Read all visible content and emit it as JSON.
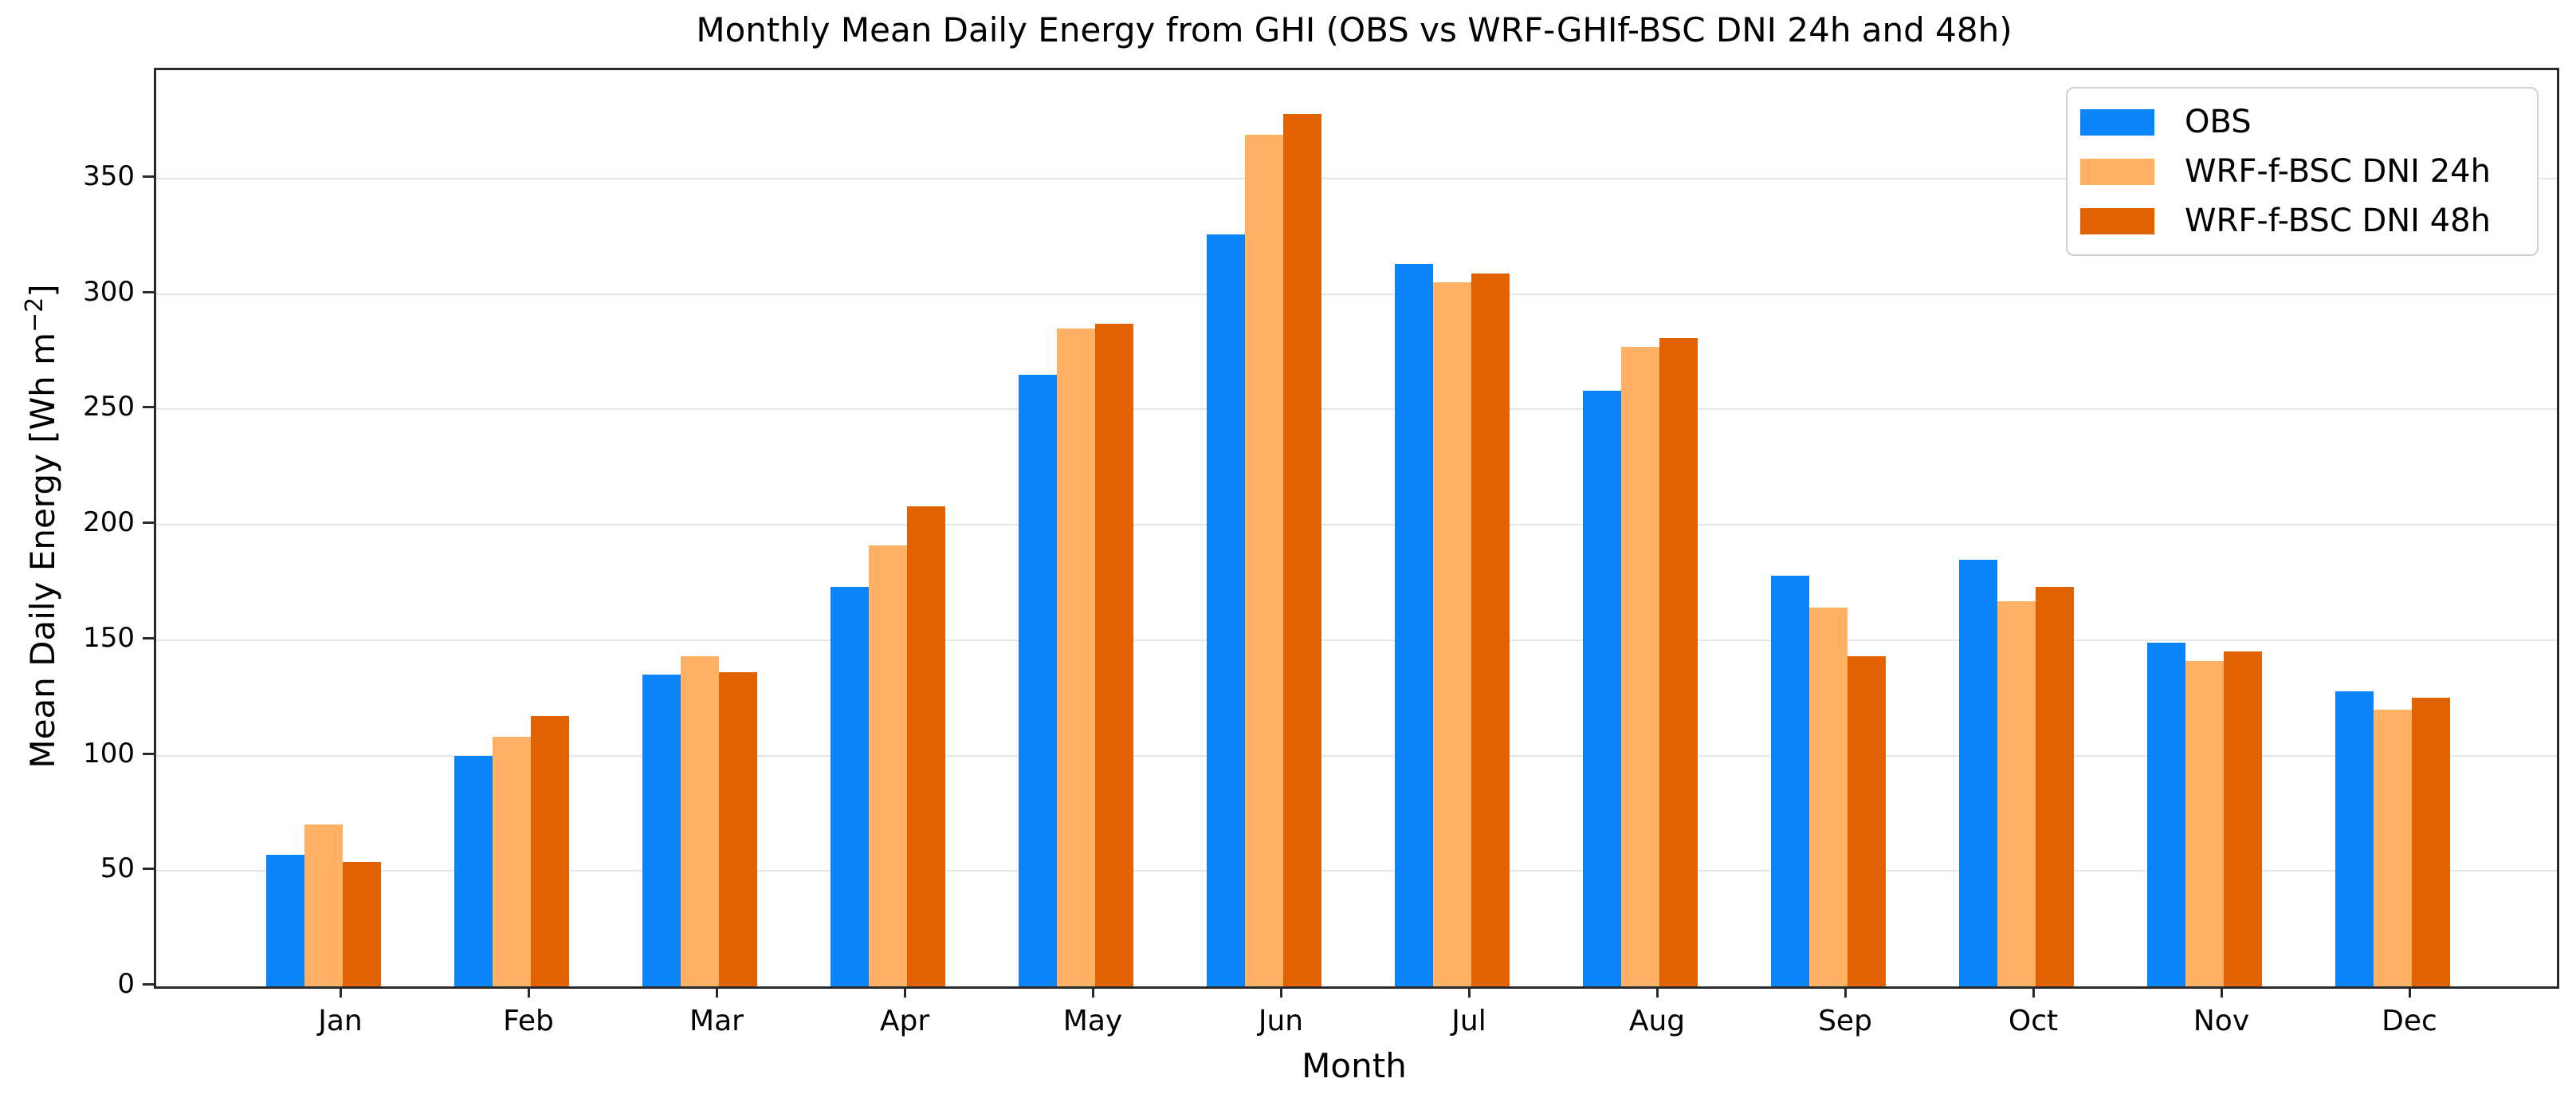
{
  "chart_data": {
    "type": "bar",
    "title": "Monthly Mean Daily Energy from GHI (OBS vs WRF-GHIf-BSC DNI 24h and 48h)",
    "xlabel": "Month",
    "ylabel": "Mean Daily Energy [Wh m⁻²]",
    "ylabel_prefix": "Mean Daily Energy [Wh m",
    "ylabel_sup": "−2",
    "ylabel_suffix": "]",
    "categories": [
      "Jan",
      "Feb",
      "Mar",
      "Apr",
      "May",
      "Jun",
      "Jul",
      "Aug",
      "Sep",
      "Oct",
      "Nov",
      "Dec"
    ],
    "series": [
      {
        "name": "OBS",
        "color": "#0a84f8",
        "values": [
          57,
          100,
          135,
          173,
          265,
          326,
          313,
          258,
          178,
          185,
          149,
          128
        ]
      },
      {
        "name": "WRF-f-BSC DNI 24h",
        "color": "#ffb266",
        "values": [
          70,
          108,
          143,
          191,
          285,
          369,
          305,
          277,
          164,
          167,
          141,
          120
        ]
      },
      {
        "name": "WRF-f-BSC DNI 48h",
        "color": "#e16200",
        "values": [
          54,
          117,
          136,
          208,
          287,
          378,
          309,
          281,
          143,
          173,
          145,
          125
        ]
      }
    ],
    "ylim": [
      0,
      397
    ],
    "yticks": [
      0,
      50,
      100,
      150,
      200,
      250,
      300,
      350
    ],
    "grid": "horizontal",
    "legend_position": "upper right",
    "axis_colors": {
      "spine": "#2a2a2a",
      "grid": "#e7e7e7",
      "text": "#000000"
    }
  }
}
